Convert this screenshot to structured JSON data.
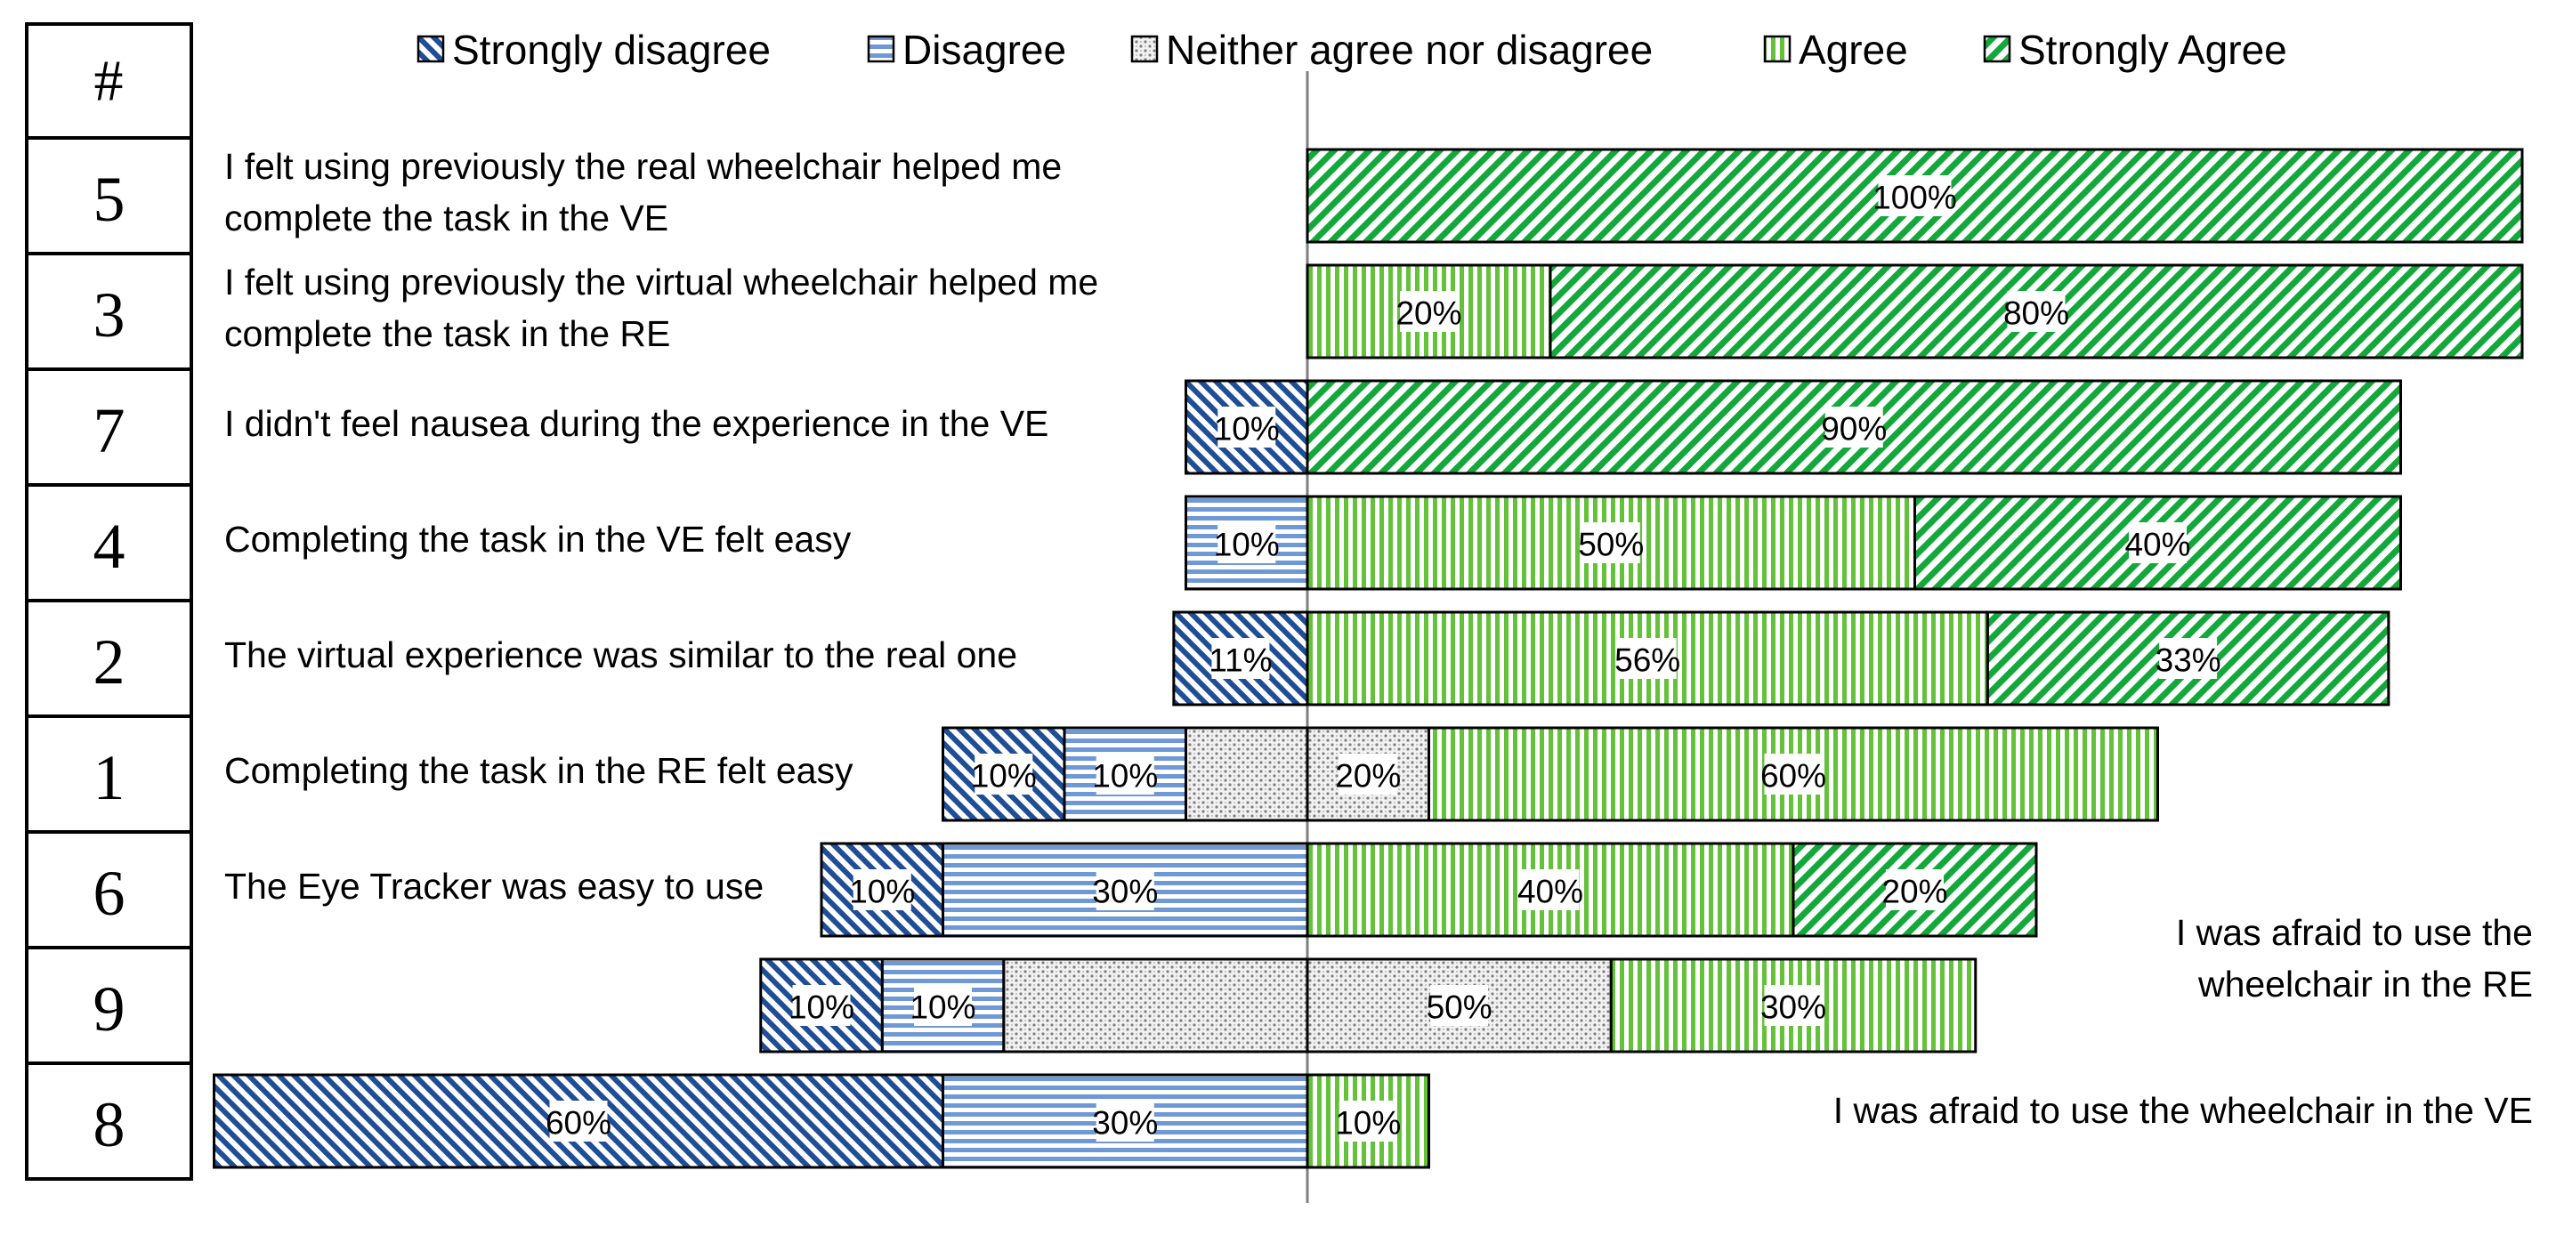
{
  "chart_data": {
    "type": "bar",
    "subtype": "diverging-stacked-horizontal",
    "index_header": "#",
    "legend": [
      {
        "key": "sd",
        "label": "Strongly disagree",
        "color": "#1f4e96",
        "pattern": "diag-back"
      },
      {
        "key": "d",
        "label": "Disagree",
        "color": "#6f98d6",
        "pattern": "horizontal"
      },
      {
        "key": "n",
        "label": "Neither agree nor disagree",
        "color": "#7f7f7f",
        "pattern": "dots"
      },
      {
        "key": "a",
        "label": "Agree",
        "color": "#63c13a",
        "pattern": "vertical"
      },
      {
        "key": "sa",
        "label": "Strongly Agree",
        "color": "#14a83c",
        "pattern": "diag-fwd"
      }
    ],
    "rows": [
      {
        "id": "5",
        "label_lines": [
          "I felt using previously the real wheelchair helped me",
          "complete the task in the VE"
        ],
        "label_side": "left",
        "values": {
          "sd": 0,
          "d": 0,
          "n": 0,
          "a": 0,
          "sa": 100
        },
        "labels": {
          "sa": "100%"
        }
      },
      {
        "id": "3",
        "label_lines": [
          "I felt using previously the virtual wheelchair helped me",
          "complete the task in the RE"
        ],
        "label_side": "left",
        "values": {
          "sd": 0,
          "d": 0,
          "n": 0,
          "a": 20,
          "sa": 80
        },
        "labels": {
          "a": "20%",
          "sa": "80%"
        }
      },
      {
        "id": "7",
        "label_lines": [
          "I didn't feel nausea during the experience in the VE"
        ],
        "label_side": "left",
        "values": {
          "sd": 10,
          "d": 0,
          "n": 0,
          "a": 0,
          "sa": 90
        },
        "labels": {
          "sd": "10%",
          "sa": "90%"
        }
      },
      {
        "id": "4",
        "label_lines": [
          "Completing the task in the VE felt easy"
        ],
        "label_side": "left",
        "values": {
          "sd": 0,
          "d": 10,
          "n": 0,
          "a": 50,
          "sa": 40
        },
        "labels": {
          "d": "10%",
          "a": "50%",
          "sa": "40%"
        }
      },
      {
        "id": "2",
        "label_lines": [
          "The virtual experience was similar to the real one"
        ],
        "label_side": "left",
        "values": {
          "sd": 11,
          "d": 0,
          "n": 0,
          "a": 56,
          "sa": 33
        },
        "labels": {
          "sd": "11%",
          "a": "56%",
          "sa": "33%"
        }
      },
      {
        "id": "1",
        "label_lines": [
          "Completing the task in the RE felt easy"
        ],
        "label_side": "left",
        "values": {
          "sd": 10,
          "d": 10,
          "n": 20,
          "a": 60,
          "sa": 0
        },
        "labels": {
          "sd": "10%",
          "d": "10%",
          "n": "20%",
          "a": "60%"
        }
      },
      {
        "id": "6",
        "label_lines": [
          "The Eye Tracker was easy to use"
        ],
        "label_side": "left",
        "values": {
          "sd": 10,
          "d": 30,
          "n": 0,
          "a": 40,
          "sa": 20
        },
        "labels": {
          "sd": "10%",
          "d": "30%",
          "a": "40%",
          "sa": "20%"
        }
      },
      {
        "id": "9",
        "label_lines": [
          "I was afraid to use the",
          "wheelchair in the RE"
        ],
        "label_side": "right",
        "values": {
          "sd": 10,
          "d": 10,
          "n": 50,
          "a": 30,
          "sa": 0
        },
        "labels": {
          "sd": "10%",
          "d": "10%",
          "n": "50%",
          "a": "30%"
        }
      },
      {
        "id": "8",
        "label_lines": [
          "I was afraid to use the wheelchair in the VE"
        ],
        "label_side": "right",
        "values": {
          "sd": 60,
          "d": 30,
          "n": 0,
          "a": 10,
          "sa": 0
        },
        "labels": {
          "sd": "60%",
          "d": "30%",
          "a": "10%"
        }
      }
    ]
  }
}
